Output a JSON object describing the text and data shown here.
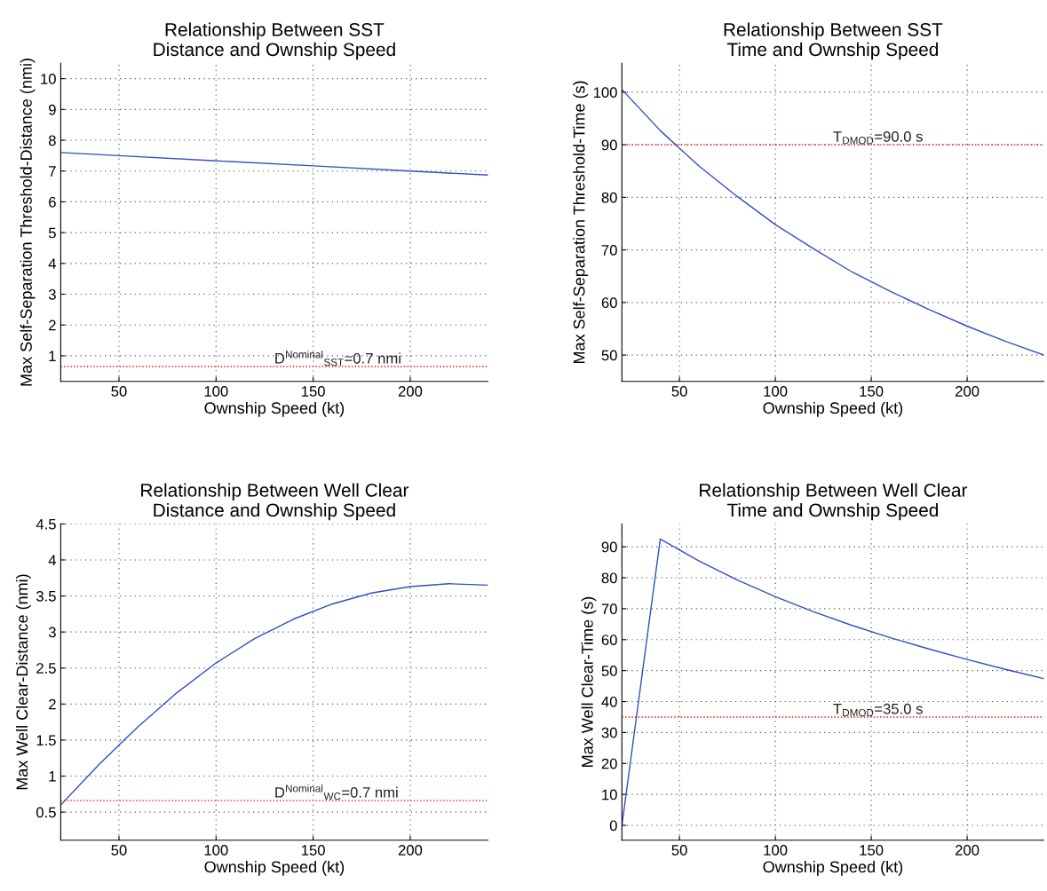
{
  "chart_data": [
    {
      "type": "line",
      "title": "Relationship Between SST\nDistance and Ownship Speed",
      "xlabel": "Ownship Speed (kt)",
      "ylabel": "Max Self-Separation Threshold-Distance (nmi)",
      "x": [
        20,
        50,
        100,
        150,
        200,
        240
      ],
      "series": [
        {
          "color": "#3050c0",
          "values": [
            7.6,
            7.5,
            7.33,
            7.17,
            7.0,
            6.87
          ]
        }
      ],
      "xlim": [
        20,
        240
      ],
      "xticks": [
        50,
        100,
        150,
        200
      ],
      "ylim": [
        0.17,
        10.5
      ],
      "yticks": [
        1,
        2,
        3,
        4,
        5,
        6,
        7,
        8,
        9,
        10
      ],
      "grid": true,
      "ref_lines": [
        {
          "axis": "y",
          "value": 0.65,
          "label": "D$^{Nominal}$$_{SST}$=0.7 nmi",
          "color": "#ff0000",
          "line_style": "dotted"
        }
      ]
    },
    {
      "type": "line",
      "title": "Relationship Between SST\nTime and Ownship Speed",
      "xlabel": "Ownship Speed (kt)",
      "ylabel": "Max Self-Separation Threshold-Time (s)",
      "x": [
        20,
        40,
        60,
        80,
        100,
        120,
        140,
        160,
        180,
        200,
        220,
        240
      ],
      "series": [
        {
          "color": "#3050c0",
          "values": [
            100.5,
            92.7,
            86.0,
            80.2,
            74.8,
            70.2,
            65.8,
            62.1,
            58.7,
            55.5,
            52.6,
            50.0
          ]
        }
      ],
      "xlim": [
        20,
        240
      ],
      "xticks": [
        50,
        100,
        150,
        200
      ],
      "ylim": [
        45,
        105.5
      ],
      "yticks": [
        50,
        60,
        70,
        80,
        90,
        100
      ],
      "grid": true,
      "ref_lines": [
        {
          "axis": "y",
          "value": 90,
          "label": "T$_{DMOD}$=90.0 s",
          "color": "#ff0000",
          "line_style": "dotted"
        }
      ]
    },
    {
      "type": "line",
      "title": "Relationship Between Well Clear\nDistance and Ownship Speed",
      "xlabel": "Ownship Speed (kt)",
      "ylabel": "Max Well Clear-Distance (nmi)",
      "x": [
        20,
        40,
        60,
        80,
        100,
        120,
        140,
        160,
        180,
        200,
        220,
        240
      ],
      "series": [
        {
          "color": "#3050c0",
          "values": [
            0.6,
            1.17,
            1.69,
            2.16,
            2.57,
            2.91,
            3.18,
            3.39,
            3.54,
            3.63,
            3.67,
            3.65
          ]
        }
      ],
      "xlim": [
        20,
        240
      ],
      "xticks": [
        50,
        100,
        150,
        200
      ],
      "ylim": [
        0.11,
        4.5
      ],
      "yticks": [
        0.5,
        1,
        1.5,
        2,
        2.5,
        3,
        3.5,
        4,
        4.5
      ],
      "grid": true,
      "ref_lines": [
        {
          "axis": "y",
          "value": 0.66,
          "label": "D$^{Nominal}$$_{WC}$=0.7 nmi",
          "color": "#ff0000",
          "line_style": "dotted"
        }
      ]
    },
    {
      "type": "line",
      "title": "Relationship Between Well Clear\nTime and Ownship Speed",
      "xlabel": "Ownship Speed (kt)",
      "ylabel": "Max Well Clear-Time (s)",
      "x": [
        20,
        40,
        60,
        80,
        100,
        120,
        140,
        160,
        180,
        200,
        220,
        240
      ],
      "series": [
        {
          "color": "#3050c0",
          "values": [
            0,
            92.5,
            85.5,
            79.3,
            73.9,
            69.0,
            64.6,
            60.6,
            57.0,
            53.6,
            50.4,
            47.4
          ]
        }
      ],
      "xlim": [
        20,
        240
      ],
      "xticks": [
        50,
        100,
        150,
        200
      ],
      "ylim": [
        -4.8,
        97.4
      ],
      "yticks": [
        0,
        10,
        20,
        30,
        40,
        50,
        60,
        70,
        80,
        90
      ],
      "grid": true,
      "ref_lines": [
        {
          "axis": "y",
          "value": 35,
          "label": "T$_{DMOD}$=35.0 s",
          "color": "#ff0000",
          "line_style": "dotted"
        }
      ]
    }
  ]
}
